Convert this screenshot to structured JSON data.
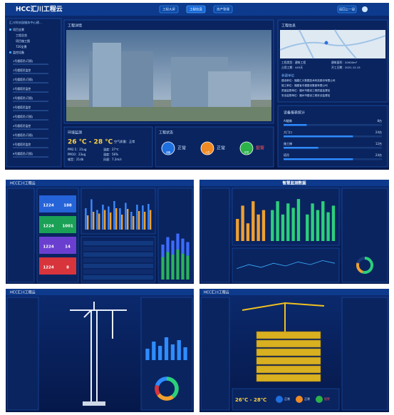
{
  "header": {
    "logo": "HCC汇川工程云",
    "tabs": [
      "工程大屏",
      "工程信息",
      "资产管理"
    ],
    "back": "返回上一级"
  },
  "sidebar": {
    "project": "汇川科技园服务中心建...",
    "tree": [
      "项目全景",
      "工程总览",
      "项目施工图",
      "720全景",
      "监控设备"
    ],
    "cameras": [
      "1号楼塔吊(可视)",
      "1号楼塔吊监控",
      "2号楼塔吊(可视)",
      "2号楼塔吊监控",
      "3号楼塔吊(可视)",
      "3号楼塔吊监控",
      "4号楼塔吊(可视)",
      "4号楼塔吊监控",
      "5号楼塔吊(可视)",
      "5号楼塔吊监控",
      "6号楼塔吊(可视)"
    ]
  },
  "detail": {
    "title": "工程详情"
  },
  "info": {
    "title": "工程信息",
    "fields": [
      "工程类型：建筑工程",
      "建筑面积：20000m²",
      "占用工期：445天",
      "开工日期：2021.12.15"
    ],
    "units_title": "参建单位",
    "units": [
      "建设单位：福建汇川数据技术科技股份有限公司",
      "施工单位：福建省中建建设集团有限公司",
      "质量监督单位：福州市建设工程质量监督站",
      "安全监督单位：福州市建设工程安全监督站"
    ]
  },
  "devices": {
    "title": "设备报表统计",
    "color": "#2f8cff",
    "max": 34,
    "items": [
      {
        "name": "AI摄像",
        "value": 8,
        "label": "8台"
      },
      {
        "name": "大门口",
        "value": 24,
        "label": "24台"
      },
      {
        "name": "施工梯",
        "value": 12,
        "label": "12台"
      },
      {
        "name": "塔吊",
        "value": 24,
        "label": "24台"
      }
    ]
  },
  "environment": {
    "title": "环境监测",
    "temperature": "26 ℃ - 28 ℃",
    "air": "空气质量：正常",
    "readings": [
      "PM2.5：21ug",
      "温度：27℃",
      "PM10：23ug",
      "湿度：56%",
      "噪音：21db",
      "风速：7.2m/s"
    ]
  },
  "status": {
    "title": "工程状态",
    "items": [
      {
        "icon": "设备",
        "label": "正常",
        "color": "#1e6fe0"
      },
      {
        "icon": "人员",
        "label": "正常",
        "color": "#f08a24"
      },
      {
        "icon": "环境",
        "label": "报警",
        "color": "#2bb34a"
      }
    ]
  },
  "dashboards": [
    {
      "cards": [
        {
          "a": 1224,
          "b": 188,
          "color": "#2563d9"
        },
        {
          "a": 1224,
          "b": 1001,
          "color": "#1aa156"
        },
        {
          "a": 1224,
          "b": 14,
          "color": "#6a3fd0"
        },
        {
          "a": 1224,
          "b": 8,
          "color": "#d8343c"
        }
      ],
      "chart": {
        "ylim": [
          0,
          100
        ],
        "series": [
          {
            "color": "#3d8bff",
            "values": [
              60,
              85,
              55,
              70,
              65,
              80,
              60,
              75,
              50,
              70,
              68,
              72
            ]
          },
          {
            "color": "#f0a030",
            "values": [
              40,
              50,
              45,
              55,
              48,
              60,
              42,
              58,
              38,
              52,
              50,
              55
            ]
          }
        ]
      },
      "stack": {
        "ylim": [
          0,
          100
        ],
        "series": [
          {
            "color": "#2bb35a",
            "values": [
              45,
              55,
              50,
              60,
              52,
              48
            ]
          },
          {
            "color": "#3d6bff",
            "values": [
              25,
              30,
              28,
              32,
              30,
              27
            ]
          }
        ]
      }
    },
    {
      "title": "智慧监测数据",
      "charts": [
        {
          "ylim": [
            0,
            100
          ],
          "series": [
            {
              "color": "#f0a030",
              "values": [
                50,
                80,
                40,
                90,
                60,
                70
              ]
            }
          ]
        },
        {
          "ylim": [
            0,
            100
          ],
          "series": [
            {
              "color": "#2bd07a",
              "values": [
                70,
                90,
                60,
                85,
                75,
                95
              ]
            }
          ]
        },
        {
          "ylim": [
            0,
            100
          ],
          "series": [
            {
              "color": "#2bd07a",
              "values": [
                60,
                85,
                70,
                90,
                65,
                80
              ]
            }
          ]
        }
      ],
      "line": {
        "ylim": [
          0,
          100
        ],
        "color": "#3db0ff",
        "values": [
          40,
          55,
          45,
          60,
          50,
          65,
          55,
          70,
          60
        ]
      },
      "donut": {
        "colors": [
          "#2bd07a",
          "#f0a030",
          "#1d3a7a"
        ],
        "values": [
          55,
          25,
          20
        ]
      }
    },
    {
      "bars": {
        "ylim": [
          0,
          100
        ],
        "series": [
          {
            "color": "#2f8cff",
            "values": [
              40,
              65,
              50,
              80,
              55,
              70,
              45
            ]
          }
        ]
      },
      "donut": {
        "colors": [
          "#2bd07a",
          "#f0a030",
          "#d8343c",
          "#2f8cff"
        ],
        "values": [
          40,
          25,
          15,
          20
        ]
      }
    },
    {
      "temperature": "26℃ - 28℃"
    }
  ]
}
